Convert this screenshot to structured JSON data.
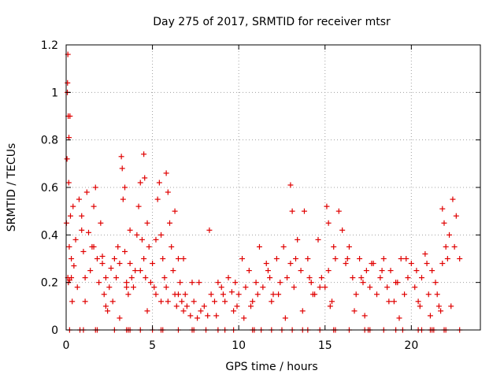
{
  "chart_data": {
    "type": "scatter",
    "title": "Day 275 of 2017, SRMTID for receiver mtsr",
    "xlabel": "GPS time / hours",
    "ylabel": "SRMTID / TECUs",
    "xlim": [
      0,
      24
    ],
    "ylim": [
      0,
      1.2
    ],
    "xticks": [
      0,
      5,
      10,
      15,
      20
    ],
    "xtick_labels": [
      "0",
      "5",
      "10",
      "15",
      "20"
    ],
    "yticks": [
      0,
      0.2,
      0.4,
      0.6,
      0.8,
      1.0,
      1.2
    ],
    "ytick_labels": [
      "0",
      "0.2",
      "0.4",
      "0.6",
      "0.8",
      "1",
      "1.2"
    ],
    "grid": true,
    "marker": "+",
    "series": [
      {
        "name": "SRMTID",
        "color": "#e00000",
        "x": [
          0.02,
          0.05,
          0.08,
          0.1,
          0.12,
          0.15,
          0.18,
          0.2,
          0.25,
          0.3,
          0.35,
          0.45,
          0.55,
          0.65,
          0.75,
          0.9,
          1.0,
          1.1,
          1.2,
          1.3,
          1.4,
          1.5,
          1.6,
          1.7,
          1.8,
          1.9,
          2.0,
          2.1,
          2.2,
          2.3,
          2.4,
          2.5,
          2.6,
          2.7,
          2.8,
          2.9,
          3.0,
          3.1,
          3.2,
          3.3,
          3.4,
          3.5,
          3.6,
          3.7,
          3.8,
          3.9,
          4.0,
          4.1,
          4.2,
          4.3,
          4.4,
          4.5,
          4.6,
          4.7,
          4.8,
          4.9,
          5.0,
          5.1,
          5.2,
          5.3,
          5.4,
          5.5,
          5.6,
          5.7,
          5.8,
          5.9,
          6.0,
          6.1,
          6.2,
          6.3,
          6.4,
          6.5,
          6.6,
          6.7,
          6.8,
          6.9,
          7.0,
          7.2,
          7.4,
          7.6,
          7.8,
          8.0,
          8.2,
          8.4,
          8.6,
          8.8,
          9.0,
          9.2,
          9.4,
          9.6,
          9.8,
          10.0,
          10.2,
          10.4,
          10.6,
          10.8,
          11.0,
          11.2,
          11.4,
          11.6,
          11.8,
          12.0,
          12.2,
          12.4,
          12.6,
          12.8,
          13.0,
          13.2,
          13.4,
          13.6,
          13.8,
          14.0,
          14.2,
          14.4,
          14.6,
          14.8,
          15.0,
          15.2,
          15.4,
          15.6,
          15.8,
          16.0,
          16.2,
          16.4,
          16.6,
          16.8,
          17.0,
          17.2,
          17.4,
          17.6,
          17.8,
          18.0,
          18.2,
          18.4,
          18.6,
          18.8,
          19.0,
          19.2,
          19.4,
          19.6,
          19.8,
          20.0,
          20.2,
          20.4,
          20.6,
          20.8,
          21.0,
          21.2,
          21.4,
          21.6,
          21.8,
          22.0,
          22.2,
          22.4,
          22.6,
          22.8,
          0.1,
          0.13,
          0.16,
          0.07,
          0.22,
          3.25,
          3.4,
          4.5,
          4.55,
          5.8,
          5.9,
          13.0,
          13.1,
          15.1,
          15.2,
          21.8,
          21.9,
          0.4,
          0.9,
          1.6,
          2.1,
          3.5,
          3.7,
          4.3,
          5.2,
          6.3,
          6.8,
          7.7,
          8.3,
          9.1,
          9.7,
          10.3,
          11.1,
          11.7,
          12.3,
          13.3,
          14.1,
          14.7,
          15.5,
          16.3,
          17.1,
          17.7,
          18.3,
          19.1,
          19.7,
          20.3,
          20.9,
          21.5,
          22.1,
          22.5,
          0.3,
          1.1,
          2.3,
          3.1,
          4.7,
          5.5,
          6.5,
          7.3,
          8.7,
          9.9,
          10.7,
          11.9,
          12.7,
          13.7,
          14.3,
          15.3,
          16.7,
          17.3,
          18.7,
          19.3,
          20.5,
          21.1,
          21.7,
          22.3
        ],
        "y": [
          0.45,
          0.72,
          1.04,
          1.16,
          0.9,
          0.62,
          0.35,
          0.21,
          0.48,
          0.3,
          0.12,
          0.27,
          0.38,
          0.18,
          0.55,
          0.42,
          0.33,
          0.22,
          0.58,
          0.41,
          0.25,
          0.35,
          0.52,
          0.6,
          0.3,
          0.2,
          0.45,
          0.31,
          0.15,
          0.22,
          0.08,
          0.18,
          0.26,
          0.12,
          0.3,
          0.22,
          0.35,
          0.28,
          0.73,
          0.55,
          0.33,
          0.2,
          0.15,
          0.28,
          0.22,
          0.18,
          0.25,
          0.4,
          0.52,
          0.62,
          0.38,
          0.3,
          0.22,
          0.45,
          0.35,
          0.2,
          0.28,
          0.18,
          0.38,
          0.55,
          0.62,
          0.4,
          0.3,
          0.22,
          0.18,
          0.12,
          0.45,
          0.35,
          0.25,
          0.15,
          0.1,
          0.3,
          0.2,
          0.12,
          0.08,
          0.15,
          0.1,
          0.06,
          0.12,
          0.05,
          0.08,
          0.1,
          0.06,
          0.15,
          0.12,
          0.2,
          0.18,
          0.12,
          0.22,
          0.16,
          0.2,
          0.15,
          0.3,
          0.18,
          0.25,
          0.12,
          0.2,
          0.35,
          0.18,
          0.28,
          0.22,
          0.15,
          0.3,
          0.2,
          0.35,
          0.22,
          0.28,
          0.18,
          0.38,
          0.25,
          0.5,
          0.3,
          0.2,
          0.15,
          0.38,
          0.22,
          0.18,
          0.25,
          0.12,
          0.3,
          0.5,
          0.42,
          0.28,
          0.35,
          0.22,
          0.15,
          0.3,
          0.2,
          0.25,
          0.18,
          0.28,
          0.15,
          0.22,
          0.3,
          0.18,
          0.25,
          0.12,
          0.2,
          0.3,
          0.15,
          0.22,
          0.28,
          0.18,
          0.12,
          0.22,
          0.32,
          0.15,
          0.25,
          0.2,
          0.1,
          0.28,
          0.35,
          0.4,
          0.55,
          0.48,
          0.3,
          0.22,
          0.2,
          0.81,
          1.0,
          0.9,
          0.68,
          0.6,
          0.74,
          0.64,
          0.66,
          0.58,
          0.61,
          0.5,
          0.52,
          0.45,
          0.51,
          0.45,
          0.52,
          0.48,
          0.35,
          0.28,
          0.18,
          0.42,
          0.25,
          0.15,
          0.5,
          0.3,
          0.2,
          0.42,
          0.15,
          0.08,
          0.05,
          0.15,
          0.25,
          0.15,
          0.3,
          0.22,
          0.18,
          0.35,
          0.3,
          0.22,
          0.28,
          0.25,
          0.2,
          0.3,
          0.25,
          0.28,
          0.15,
          0.3,
          0.35,
          0.22,
          0.12,
          0.1,
          0.05,
          0.08,
          0.12,
          0.15,
          0.2,
          0.06,
          0.1,
          0.1,
          0.12,
          0.05,
          0.08,
          0.15,
          0.1,
          0.08,
          0.06,
          0.12,
          0.05,
          0.1,
          0.06,
          0.08,
          0.1
        ],
        "zero_marker_x": [
          0.2,
          0.8,
          1.0,
          1.7,
          1.8,
          2.8,
          3.5,
          3.6,
          3.7,
          4.3,
          5.0,
          5.5,
          5.6,
          6.5,
          7.3,
          7.4,
          8.1,
          8.8,
          9.2,
          9.7,
          10.8,
          10.9,
          11.3,
          11.9,
          12.5,
          13.1,
          13.7,
          14.0,
          14.7,
          15.5,
          15.6,
          16.4,
          17.3,
          17.5,
          17.6,
          18.4,
          19.1,
          19.5,
          20.4,
          20.6,
          21.1,
          21.2,
          21.3,
          21.9,
          22.0,
          22.8
        ]
      }
    ]
  }
}
